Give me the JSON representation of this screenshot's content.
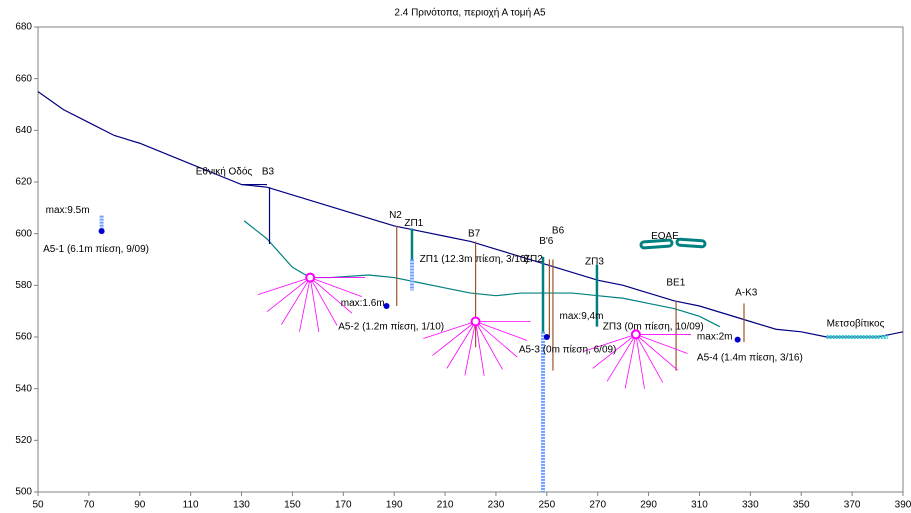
{
  "chart_data": {
    "type": "line",
    "title": "2.4 Πρινότοπα, περιοχή Α τομή Α5",
    "xlim": [
      50,
      390
    ],
    "ylim": [
      500,
      680
    ],
    "xticks": [
      50,
      70,
      90,
      110,
      130,
      150,
      170,
      190,
      210,
      230,
      250,
      270,
      290,
      310,
      330,
      350,
      370,
      390
    ],
    "yticks": [
      500,
      520,
      540,
      560,
      580,
      600,
      620,
      640,
      660,
      680
    ],
    "series": [
      {
        "color": "#000080",
        "style": "solid",
        "x": [
          50,
          60,
          70,
          80,
          90,
          100,
          110,
          120,
          130,
          140,
          150,
          160,
          170,
          180,
          190,
          200,
          210,
          220,
          230,
          240,
          250,
          260,
          270,
          280,
          290,
          300,
          310,
          320,
          330,
          340,
          350,
          360,
          370,
          380,
          390
        ],
        "values": [
          655,
          648,
          643,
          638,
          635,
          631,
          627,
          623,
          619,
          618,
          615,
          612,
          609,
          606,
          603,
          601,
          599,
          597,
          594,
          591,
          588,
          585,
          582,
          580,
          577,
          574,
          572,
          569,
          566,
          563,
          562,
          560,
          560,
          560,
          562
        ]
      },
      {
        "color": "#008080",
        "style": "solid",
        "x": [
          131,
          140,
          150,
          157,
          165,
          180,
          190,
          200,
          210,
          220,
          230,
          240,
          250,
          260,
          270,
          280,
          290,
          300,
          310,
          318
        ],
        "values": [
          605,
          598,
          587,
          583,
          583,
          584,
          583,
          581,
          579,
          577,
          576,
          577,
          577,
          577,
          576,
          575,
          573,
          571,
          568,
          564
        ]
      },
      {
        "color": "#000080",
        "style": "solid",
        "x": [
          130,
          140
        ],
        "values": [
          619,
          619
        ]
      },
      {
        "color": "#000080",
        "style": "solid",
        "x": [
          141,
          141
        ],
        "values": [
          618,
          596
        ]
      },
      {
        "color": "#a0522d",
        "style": "solid",
        "x": [
          191,
          191
        ],
        "values": [
          603,
          572
        ]
      },
      {
        "color": "#008080",
        "style": "thick",
        "x": [
          197,
          197
        ],
        "values": [
          602,
          590
        ]
      },
      {
        "color": "#6f9fff",
        "style": "hatched",
        "x": [
          197,
          197
        ],
        "values": [
          590,
          578
        ]
      },
      {
        "color": "#a0522d",
        "style": "solid",
        "x": [
          222,
          222
        ],
        "values": [
          597,
          556
        ]
      },
      {
        "color": "#008080",
        "style": "thick",
        "x": [
          248.5,
          248.5
        ],
        "values": [
          591,
          562
        ]
      },
      {
        "color": "#6f9fff",
        "style": "hatched",
        "x": [
          248.5,
          248.5
        ],
        "values": [
          562,
          500
        ]
      },
      {
        "color": "#a0522d",
        "style": "solid",
        "x": [
          251,
          251
        ],
        "values": [
          590,
          560
        ]
      },
      {
        "color": "#a0522d",
        "style": "solid",
        "x": [
          252.4,
          252.4
        ],
        "values": [
          590,
          547
        ]
      },
      {
        "color": "#008080",
        "style": "thick",
        "x": [
          269.7,
          269.7
        ],
        "values": [
          588,
          564
        ]
      },
      {
        "color": "#a0522d",
        "style": "solid",
        "x": [
          300.8,
          300.8
        ],
        "values": [
          574,
          547
        ]
      },
      {
        "color": "#a0522d",
        "style": "solid",
        "x": [
          327.5,
          327.5
        ],
        "values": [
          573,
          558
        ]
      },
      {
        "color": "#6f9fff",
        "style": "hatched",
        "x": [
          75,
          75
        ],
        "values": [
          607,
          601
        ]
      },
      {
        "color": "#33cccc",
        "style": "hatched",
        "x": [
          360,
          384
        ],
        "values": [
          560,
          560
        ]
      }
    ],
    "points": [
      {
        "color": "#0000cc",
        "x": 75,
        "y": 601
      },
      {
        "color": "#0000cc",
        "x": 187,
        "y": 572
      },
      {
        "color": "#0000cc",
        "x": 250,
        "y": 560
      },
      {
        "color": "#0000cc",
        "x": 325,
        "y": 559
      }
    ],
    "rosettes": [
      {
        "color": "#ff00ff",
        "x": 157,
        "y": 583
      },
      {
        "color": "#ff00ff",
        "x": 222,
        "y": 566
      },
      {
        "color": "#ff00ff",
        "x": 285,
        "y": 561
      }
    ],
    "annotations": [
      {
        "text": "Εθνική Οδός",
        "x": 112,
        "y": 624,
        "color": "#000000"
      },
      {
        "text": "Β3",
        "x": 138,
        "y": 624,
        "color": "#0000cc"
      },
      {
        "text": "max:9.5m",
        "x": 53,
        "y": 609,
        "color": "#000000"
      },
      {
        "text": "Α5-1 (6.1m πίεση, 9/09)",
        "x": 52,
        "y": 594,
        "color": "#000000"
      },
      {
        "text": "Ν2",
        "x": 188,
        "y": 607,
        "color": "#000000"
      },
      {
        "text": "ΖΠ1",
        "x": 194,
        "y": 604,
        "color": "#000000"
      },
      {
        "text": "ΖΠ1 (12.3m πίεση, 3/10)",
        "x": 200,
        "y": 590,
        "color": "#228b22"
      },
      {
        "text": "Β7",
        "x": 219,
        "y": 600,
        "color": "#000000"
      },
      {
        "text": "Β6",
        "x": 252,
        "y": 601,
        "color": "#8b0000"
      },
      {
        "text": "Β'6",
        "x": 247,
        "y": 597,
        "color": "#000000"
      },
      {
        "text": "ΖΠ2",
        "x": 241,
        "y": 590,
        "color": "#000000"
      },
      {
        "text": "ΖΠ3",
        "x": 265,
        "y": 589,
        "color": "#000000"
      },
      {
        "text": "ΕΟΑΕ",
        "x": 291,
        "y": 599,
        "color": "#000000"
      },
      {
        "text": "ΒΕ1",
        "x": 297,
        "y": 581,
        "color": "#000000"
      },
      {
        "text": "Α-Κ3",
        "x": 324,
        "y": 577,
        "color": "#000000"
      },
      {
        "text": "max:1.6m",
        "x": 169,
        "y": 573,
        "color": "#000000"
      },
      {
        "text": "Α5-2 (1.2m πίεση, 1/10)",
        "x": 168,
        "y": 564,
        "color": "#000000"
      },
      {
        "text": "max:9,4m",
        "x": 255,
        "y": 568,
        "color": "#000000"
      },
      {
        "text": "Α5-3 (0m πίεση, 6/09)",
        "x": 239,
        "y": 555,
        "color": "#ff8c00"
      },
      {
        "text": "ΖΠ3 (0m πίεση, 10/09)",
        "x": 272,
        "y": 564,
        "color": "#33aaaa"
      },
      {
        "text": "max:2m",
        "x": 309,
        "y": 560,
        "color": "#000000"
      },
      {
        "text": "Α5-4 (1.4m πίεση, 3/16)",
        "x": 309,
        "y": 552,
        "color": "#000000"
      },
      {
        "text": "Μετσοβίτικος",
        "x": 360,
        "y": 565,
        "color": "#000000"
      }
    ]
  }
}
